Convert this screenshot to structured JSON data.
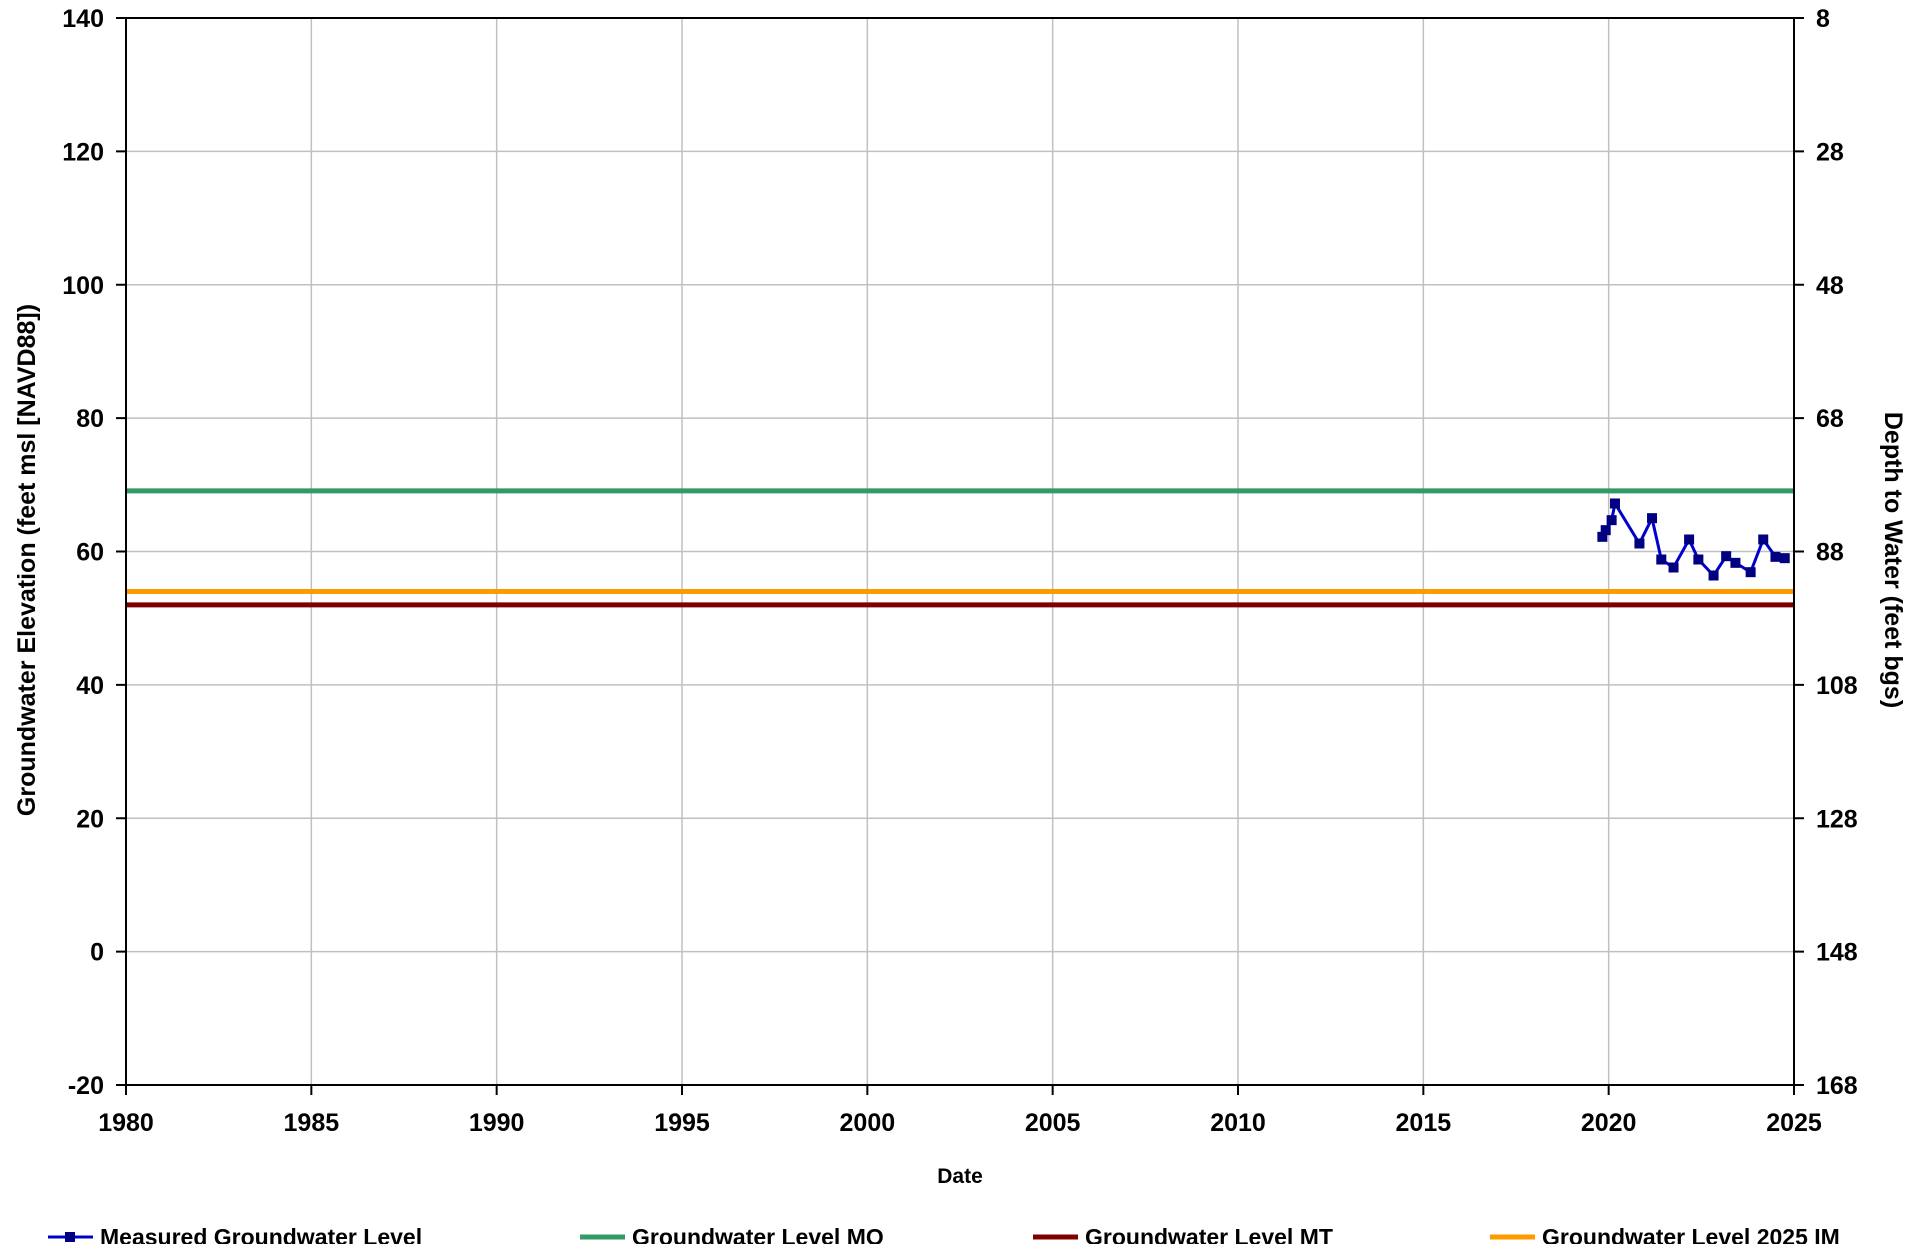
{
  "chart_data": {
    "type": "line",
    "xlabel": "Date",
    "ylabel": "Groundwater Elevation (feet msl [NAVD88])",
    "ylabel_right": "Depth to Water (feet bgs)",
    "xlim": [
      1980,
      2025
    ],
    "ylim": [
      -20,
      140
    ],
    "ylim_right": [
      168,
      8
    ],
    "x_ticks": [
      1980,
      1985,
      1990,
      1995,
      2000,
      2005,
      2010,
      2015,
      2020,
      2025
    ],
    "y_ticks": [
      -20,
      0,
      20,
      40,
      60,
      80,
      100,
      120,
      140
    ],
    "y_ticks_right": [
      168,
      148,
      128,
      108,
      88,
      68,
      48,
      28,
      8
    ],
    "grid": true,
    "legend_position": "bottom",
    "series": [
      {
        "name": "Measured Groundwater Level",
        "color": "#0000cc",
        "marker": "square",
        "x": [
          2019.83,
          2019.92,
          2020.08,
          2020.17,
          2020.83,
          2021.17,
          2021.42,
          2021.75,
          2022.17,
          2022.42,
          2022.83,
          2023.17,
          2023.42,
          2023.83,
          2024.17,
          2024.5,
          2024.75
        ],
        "y": [
          62.2,
          63.2,
          64.7,
          67.2,
          61.2,
          65.0,
          58.8,
          57.6,
          61.8,
          58.8,
          56.4,
          59.3,
          58.3,
          56.9,
          61.8,
          59.2,
          59.0
        ]
      },
      {
        "name": "Groundwater Level MO",
        "color": "#339966",
        "type": "hline",
        "y": 69.1
      },
      {
        "name": "Groundwater Level MT",
        "color": "#800000",
        "type": "hline",
        "y": 52.0
      },
      {
        "name": "Groundwater Level 2025 IM",
        "color": "#ff9900",
        "type": "hline",
        "y": 54.0
      }
    ]
  }
}
